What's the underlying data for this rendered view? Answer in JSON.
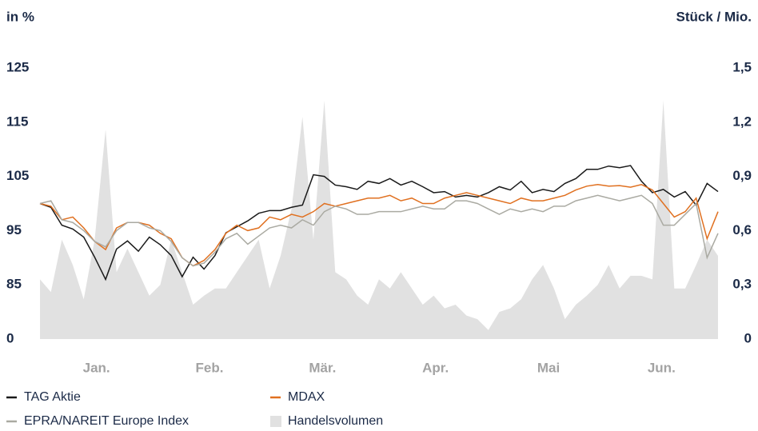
{
  "chart_data": {
    "type": "line",
    "y_label": "in %",
    "y2_label": "Stück / Mio.",
    "x_labels": [
      "Jan.",
      "Feb.",
      "Mär.",
      "Apr.",
      "Mai",
      "Jun."
    ],
    "ylim": [
      0,
      125
    ],
    "yticks": [
      0,
      85,
      95,
      105,
      115,
      125
    ],
    "y_axis_break": true,
    "y2lim": [
      0,
      1.5
    ],
    "y2ticks": [
      0,
      {
        "value": 0.3,
        "label": "0,3"
      },
      {
        "value": 0.6,
        "label": "0,6"
      },
      {
        "value": 0.9,
        "label": "0,9"
      },
      {
        "value": 1.2,
        "label": "1,2"
      },
      {
        "value": 1.5,
        "label": "1,5"
      }
    ],
    "series": [
      {
        "name": "TAG Aktie",
        "color": "#1a1a1a",
        "type": "line",
        "values": [
          100,
          99.3,
          96,
          95.3,
          93.8,
          90.1,
          86,
          91.6,
          93.1,
          91.2,
          93.8,
          92.4,
          90.4,
          86.5,
          90.1,
          87.9,
          90.4,
          94.6,
          95.7,
          96.8,
          98.2,
          98.7,
          98.7,
          99.3,
          99.7,
          105.3,
          105,
          103.4,
          103.1,
          102.6,
          104.1,
          103.7,
          104.6,
          103.4,
          104.1,
          103.1,
          102,
          102.2,
          101.2,
          101.5,
          101.2,
          102,
          103.1,
          102.5,
          104.1,
          102,
          102.6,
          102.2,
          103.7,
          104.6,
          106.3,
          106.3,
          106.9,
          106.6,
          107,
          104.1,
          102,
          102.6,
          101.2,
          102.2,
          99.7,
          103.7,
          102.2
        ]
      },
      {
        "name": "MDAX",
        "color": "#e07020",
        "type": "line",
        "values": [
          100,
          99.5,
          97,
          97.5,
          95.5,
          93,
          91.5,
          95.5,
          96.5,
          96.5,
          96,
          94.5,
          93.5,
          90,
          88.5,
          89.5,
          91.5,
          94.5,
          96,
          95,
          95.5,
          97.5,
          97,
          98,
          97.5,
          98.5,
          100,
          99.5,
          100,
          100.5,
          101,
          101,
          101.5,
          100.5,
          101,
          100,
          100,
          101,
          101.5,
          102,
          101.5,
          101,
          100.5,
          100,
          101,
          100.5,
          100.5,
          101,
          101.5,
          102.5,
          103.2,
          103.5,
          103.2,
          103.3,
          103,
          103.5,
          102.5,
          100,
          97.5,
          98.5,
          101,
          93.5,
          98.5
        ]
      },
      {
        "name": "EPRA/NAREIT Europe Index",
        "color": "#aaaaa2",
        "type": "line",
        "values": [
          100,
          100.5,
          97,
          96.5,
          95,
          93,
          92,
          95,
          96.5,
          96.5,
          95.5,
          95,
          93,
          90,
          88.5,
          89,
          91,
          93.5,
          94.5,
          92.5,
          94,
          95.5,
          96,
          95.5,
          97,
          96,
          98.5,
          99.5,
          99,
          98,
          98,
          98.5,
          98.5,
          98.5,
          99,
          99.5,
          99,
          99,
          100.5,
          100.5,
          100,
          99,
          98,
          99,
          98.5,
          99,
          98.5,
          99.5,
          99.5,
          100.5,
          101,
          101.5,
          101,
          100.5,
          101,
          101.5,
          100,
          96,
          96,
          98,
          100,
          90,
          94.5
        ]
      },
      {
        "name": "Handelsvolumen",
        "color": "#e1e1e1",
        "type": "area",
        "axis": "y2",
        "values": [
          0.33,
          0.26,
          0.55,
          0.41,
          0.22,
          0.55,
          1.16,
          0.37,
          0.5,
          0.37,
          0.24,
          0.3,
          0.55,
          0.37,
          0.19,
          0.24,
          0.28,
          0.28,
          0.37,
          0.46,
          0.55,
          0.28,
          0.46,
          0.72,
          1.23,
          0.55,
          1.32,
          0.37,
          0.33,
          0.24,
          0.19,
          0.33,
          0.28,
          0.37,
          0.28,
          0.19,
          0.24,
          0.17,
          0.19,
          0.13,
          0.11,
          0.05,
          0.15,
          0.17,
          0.22,
          0.33,
          0.41,
          0.28,
          0.11,
          0.19,
          0.24,
          0.3,
          0.41,
          0.28,
          0.35,
          0.35,
          0.33,
          1.32,
          0.28,
          0.28,
          0.41,
          0.55,
          0.46
        ]
      }
    ]
  }
}
